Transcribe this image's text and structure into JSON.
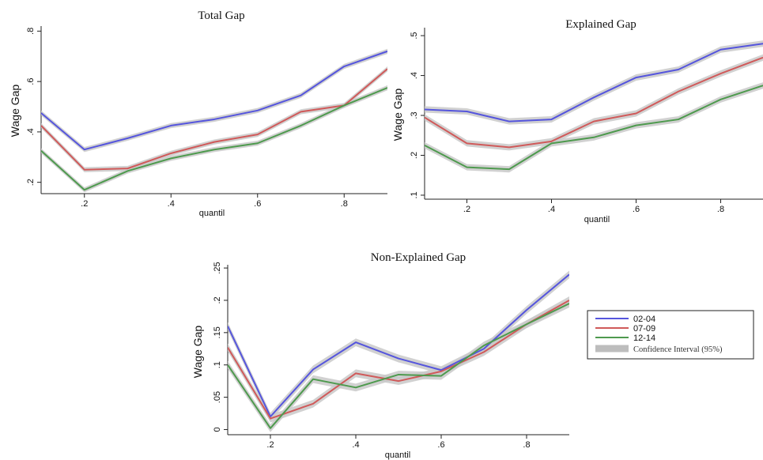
{
  "chart_data": [
    {
      "type": "line",
      "title": "Total Gap",
      "xlabel": "quantil",
      "ylabel": "Wage Gap",
      "xlim": [
        0.1,
        0.9
      ],
      "ylim": [
        0.155,
        0.82
      ],
      "xticks": [
        0.2,
        0.4,
        0.6,
        0.8
      ],
      "xtick_labels": [
        ".2",
        ".4",
        ".6",
        ".8"
      ],
      "yticks": [
        0.2,
        0.4,
        0.6,
        0.8
      ],
      "ytick_labels": [
        ".2",
        ".4",
        ".6",
        ".8"
      ],
      "x": [
        0.1,
        0.2,
        0.3,
        0.4,
        0.5,
        0.6,
        0.7,
        0.8,
        0.9
      ],
      "series": [
        {
          "name": "02-04",
          "color": "#5555dd",
          "values": [
            0.475,
            0.33,
            0.375,
            0.425,
            0.45,
            0.485,
            0.545,
            0.66,
            0.72
          ],
          "ci": 0.01
        },
        {
          "name": "07-09",
          "color": "#d05a5a",
          "values": [
            0.425,
            0.25,
            0.255,
            0.315,
            0.36,
            0.39,
            0.48,
            0.505,
            0.65
          ],
          "ci": 0.01
        },
        {
          "name": "12-14",
          "color": "#4e9a4e",
          "values": [
            0.325,
            0.17,
            0.245,
            0.295,
            0.33,
            0.355,
            0.425,
            0.505,
            0.575
          ],
          "ci": 0.01
        }
      ]
    },
    {
      "type": "line",
      "title": "Explained Gap",
      "xlabel": "quantil",
      "ylabel": "Wage Gap",
      "xlim": [
        0.1,
        0.9
      ],
      "ylim": [
        0.09,
        0.52
      ],
      "xticks": [
        0.2,
        0.4,
        0.6,
        0.8
      ],
      "xtick_labels": [
        ".2",
        ".4",
        ".6",
        ".8"
      ],
      "yticks": [
        0.1,
        0.2,
        0.3,
        0.4,
        0.5
      ],
      "ytick_labels": [
        ".1",
        ".2",
        ".3",
        ".4",
        ".5"
      ],
      "x": [
        0.1,
        0.2,
        0.3,
        0.4,
        0.5,
        0.6,
        0.7,
        0.8,
        0.9
      ],
      "series": [
        {
          "name": "02-04",
          "color": "#5555dd",
          "values": [
            0.315,
            0.31,
            0.285,
            0.29,
            0.345,
            0.395,
            0.415,
            0.465,
            0.48
          ],
          "ci": 0.008
        },
        {
          "name": "07-09",
          "color": "#d05a5a",
          "values": [
            0.295,
            0.23,
            0.22,
            0.235,
            0.285,
            0.305,
            0.36,
            0.405,
            0.445
          ],
          "ci": 0.008
        },
        {
          "name": "12-14",
          "color": "#4e9a4e",
          "values": [
            0.225,
            0.17,
            0.165,
            0.23,
            0.245,
            0.275,
            0.29,
            0.34,
            0.375
          ],
          "ci": 0.008
        }
      ]
    },
    {
      "type": "line",
      "title": "Non-Explained Gap",
      "xlabel": "quantil",
      "ylabel": "Wage Gap",
      "xlim": [
        0.1,
        0.9
      ],
      "ylim": [
        -0.008,
        0.255
      ],
      "xticks": [
        0.2,
        0.4,
        0.6,
        0.8
      ],
      "xtick_labels": [
        ".2",
        ".4",
        ".6",
        ".8"
      ],
      "yticks": [
        0,
        0.05,
        0.1,
        0.15,
        0.2,
        0.25
      ],
      "ytick_labels": [
        "0",
        ".05",
        ".1",
        ".15",
        ".2",
        ".25"
      ],
      "x": [
        0.1,
        0.2,
        0.3,
        0.4,
        0.5,
        0.6,
        0.7,
        0.8,
        0.9
      ],
      "series": [
        {
          "name": "02-04",
          "color": "#5555dd",
          "values": [
            0.16,
            0.02,
            0.093,
            0.135,
            0.11,
            0.092,
            0.125,
            0.185,
            0.24
          ],
          "ci": 0.006
        },
        {
          "name": "07-09",
          "color": "#d05a5a",
          "values": [
            0.127,
            0.017,
            0.04,
            0.087,
            0.075,
            0.09,
            0.12,
            0.163,
            0.2
          ],
          "ci": 0.006
        },
        {
          "name": "12-14",
          "color": "#4e9a4e",
          "values": [
            0.1,
            0.002,
            0.078,
            0.065,
            0.085,
            0.083,
            0.13,
            0.163,
            0.195
          ],
          "ci": 0.006
        }
      ]
    }
  ],
  "legend": {
    "items": [
      {
        "label": "02-04",
        "color": "#5555dd"
      },
      {
        "label": "07-09",
        "color": "#d05a5a"
      },
      {
        "label": "12-14",
        "color": "#4e9a4e"
      },
      {
        "label": "Confidence Interval (95%)",
        "color": "#bdbdbd"
      }
    ]
  }
}
